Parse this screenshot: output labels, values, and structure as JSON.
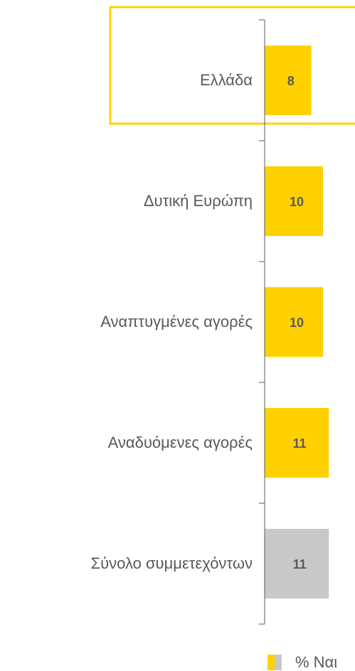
{
  "chart_data": {
    "type": "bar",
    "orientation": "horizontal",
    "categories": [
      "Ελλάδα",
      "Δυτική Ευρώπη",
      "Αναπτυγμένες αγορές",
      "Αναδυόμενες αγορές",
      "Σύνολο συμμετεχόντων"
    ],
    "series": [
      {
        "name": "% Ναι",
        "color": "#FFD100",
        "values": [
          8,
          10,
          10,
          11,
          11
        ],
        "colors": [
          "#FFD100",
          "#FFD100",
          "#FFD100",
          "#FFD100",
          "#C8C8C8"
        ]
      }
    ],
    "legend_colors": [
      "#FFD100",
      "#C8C8C8"
    ],
    "highlight": 0,
    "highlight_color": "#FFD100"
  }
}
